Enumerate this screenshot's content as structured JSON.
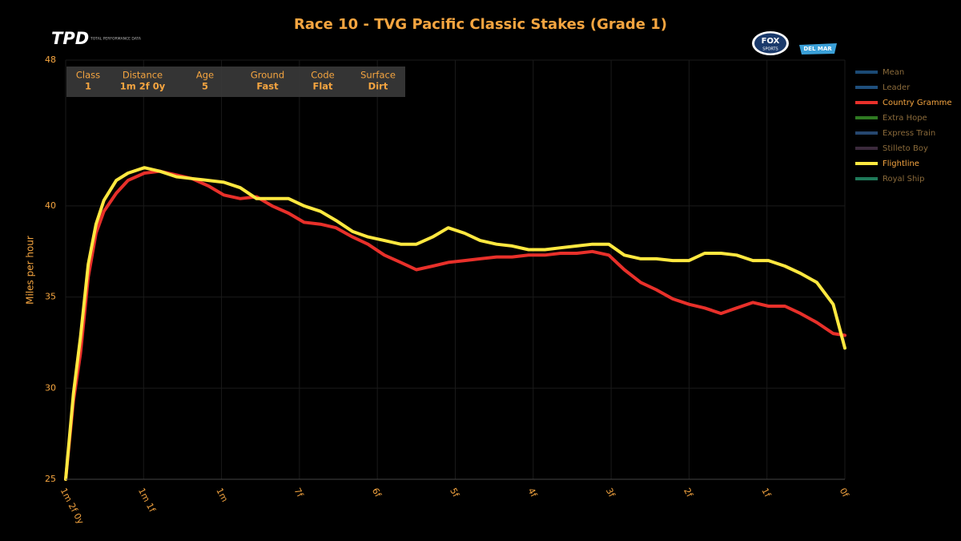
{
  "chart_data": {
    "type": "line",
    "title": "Race 10 - TVG Pacific Classic Stakes (Grade 1)",
    "ylabel": "Miles per hour",
    "logos": {
      "tpd": "TPD",
      "tpd_sub": "TOTAL PERFORMANCE DATA",
      "fox": "FOX",
      "fox_sub": "SPORTS",
      "delmar": "DEL MAR"
    },
    "info_table": {
      "headers": [
        "Class",
        "Distance",
        "Age",
        "Ground",
        "Code",
        "Surface"
      ],
      "values": [
        "1",
        "1m 2f 0y",
        "5",
        "Fast",
        "Flat",
        "Dirt"
      ]
    },
    "xlim": [
      10,
      0
    ],
    "xticks": [
      {
        "value": 10,
        "label": "1m 2f 0y"
      },
      {
        "value": 9,
        "label": "1m 1f"
      },
      {
        "value": 8,
        "label": "1m"
      },
      {
        "value": 7,
        "label": "7f"
      },
      {
        "value": 6,
        "label": "6f"
      },
      {
        "value": 5,
        "label": "5f"
      },
      {
        "value": 4,
        "label": "4f"
      },
      {
        "value": 3,
        "label": "3f"
      },
      {
        "value": 2,
        "label": "2f"
      },
      {
        "value": 1,
        "label": "1f"
      },
      {
        "value": 0,
        "label": "0f"
      }
    ],
    "ylim": [
      25,
      48
    ],
    "yticks": [
      25,
      30,
      35,
      40,
      48
    ],
    "grid": true,
    "legend": "right",
    "x": [
      10.0,
      9.9,
      9.81,
      9.71,
      9.61,
      9.51,
      9.35,
      9.2,
      8.99,
      8.79,
      8.58,
      8.38,
      8.17,
      7.97,
      7.76,
      7.55,
      7.35,
      7.14,
      6.94,
      6.73,
      6.53,
      6.32,
      6.12,
      5.91,
      5.7,
      5.5,
      5.29,
      5.09,
      4.88,
      4.68,
      4.47,
      4.27,
      4.06,
      3.85,
      3.65,
      3.44,
      3.24,
      3.03,
      2.83,
      2.62,
      2.42,
      2.21,
      2.0,
      1.8,
      1.59,
      1.39,
      1.18,
      0.98,
      0.77,
      0.57,
      0.36,
      0.15,
      0.0
    ],
    "series": [
      {
        "name": "Mean",
        "color": "#1b4a75",
        "visible": false
      },
      {
        "name": "Leader",
        "color": "#1f4f7c",
        "visible": false
      },
      {
        "name": "Country Gramme",
        "color": "#e8302a",
        "visible": true,
        "values": [
          25,
          29.3,
          31.9,
          36.1,
          38.5,
          39.7,
          40.7,
          41.4,
          41.8,
          41.9,
          41.7,
          41.5,
          41.1,
          40.6,
          40.4,
          40.5,
          40.0,
          39.6,
          39.1,
          39.0,
          38.8,
          38.3,
          37.9,
          37.3,
          36.9,
          36.5,
          36.7,
          36.9,
          37.0,
          37.1,
          37.2,
          37.2,
          37.3,
          37.3,
          37.4,
          37.4,
          37.5,
          37.3,
          36.5,
          35.8,
          35.4,
          34.9,
          34.6,
          34.4,
          34.1,
          34.4,
          34.7,
          34.5,
          34.5,
          34.1,
          33.6,
          33.0,
          32.9
        ]
      },
      {
        "name": "Extra Hope",
        "color": "#2f7a22",
        "visible": false
      },
      {
        "name": "Express Train",
        "color": "#26476f",
        "visible": false
      },
      {
        "name": "Stilleto Boy",
        "color": "#3b2a3c",
        "visible": false
      },
      {
        "name": "Flightline",
        "color": "#ffe840",
        "visible": true,
        "values": [
          25,
          29.7,
          32.8,
          36.8,
          39.0,
          40.3,
          41.4,
          41.8,
          42.1,
          41.9,
          41.6,
          41.5,
          41.4,
          41.3,
          41.0,
          40.4,
          40.4,
          40.4,
          40.0,
          39.7,
          39.2,
          38.6,
          38.3,
          38.1,
          37.9,
          37.9,
          38.3,
          38.8,
          38.5,
          38.1,
          37.9,
          37.8,
          37.6,
          37.6,
          37.7,
          37.8,
          37.9,
          37.9,
          37.3,
          37.1,
          37.1,
          37.0,
          37.0,
          37.4,
          37.4,
          37.3,
          37.0,
          37.0,
          36.7,
          36.3,
          35.8,
          34.6,
          32.2
        ]
      },
      {
        "name": "Royal Ship",
        "color": "#1f7a5a",
        "visible": false
      }
    ]
  }
}
